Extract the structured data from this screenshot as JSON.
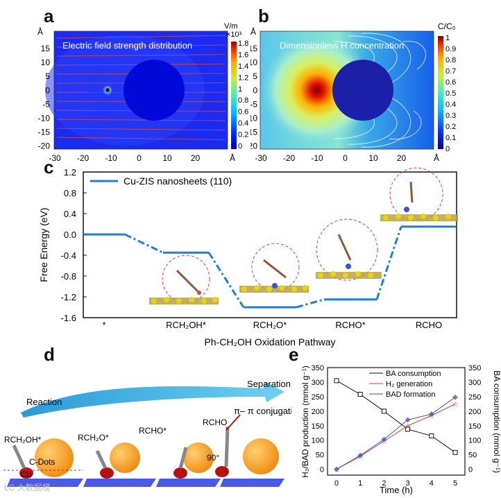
{
  "panels": {
    "a": "a",
    "b": "b",
    "c": "c",
    "d": "d",
    "e": "e"
  },
  "panel_a": {
    "overlay": "Electric field strength distribution",
    "unit_line1": "V/m",
    "unit_line2": "×10³",
    "axis_unit": "Å",
    "x_ticks": [
      "-30",
      "-20",
      "-10",
      "0",
      "10",
      "20"
    ],
    "y_ticks": [
      "15",
      "10",
      "5",
      "0",
      "-5",
      "-10",
      "-15",
      "-20"
    ],
    "colorbar_ticks": [
      "1.8",
      "1.6",
      "1.4",
      "1.2",
      "1",
      "0.8",
      "0.6",
      "0.4",
      "0.2",
      "0"
    ]
  },
  "panel_b": {
    "overlay": "Dimensionless H concentration",
    "unit": "C/C₀",
    "axis_unit": "Å",
    "x_ticks": [
      "-30",
      "-20",
      "-10",
      "0",
      "10",
      "20"
    ],
    "y_ticks": [
      "15",
      "10",
      "5",
      "0",
      "-5",
      "-10",
      "-15",
      "-20"
    ],
    "colorbar_ticks": [
      "1",
      "0.9",
      "0.8",
      "0.7",
      "0.6",
      "0.5",
      "0.4",
      "0.3",
      "0.2",
      "0.1",
      "0"
    ]
  },
  "chart_data": [
    {
      "type": "line",
      "panel": "c",
      "title": "",
      "xlabel": "Ph-CH₂OH Oxidation Pathway",
      "ylabel": "Free Energy (eV)",
      "ylim": [
        -1.6,
        1.2
      ],
      "y_ticks": [
        "1.2",
        "0.8",
        "0.4",
        "0.0",
        "-0.4",
        "-0.8",
        "-1.2",
        "-1.6"
      ],
      "categories": [
        "*",
        "RCH₂OH*",
        "RCH₂O*",
        "RCHO*",
        "RCHO"
      ],
      "series": [
        {
          "name": "Cu-ZIS nanosheets (110)",
          "color": "#1f7fd6",
          "values": [
            0.0,
            -0.35,
            -1.4,
            -1.25,
            0.15
          ]
        }
      ]
    },
    {
      "type": "line",
      "panel": "e",
      "xlabel": "Time (h)",
      "ylabel_left": "H₂/BAD production (mmol g⁻¹)",
      "ylabel_right": "BA consumption (mmol g⁻¹)",
      "ylim": [
        -20,
        350
      ],
      "x": [
        0,
        1,
        2,
        3,
        4,
        5
      ],
      "x_ticks": [
        "0",
        "1",
        "2",
        "3",
        "4",
        "5"
      ],
      "y_ticks": [
        "0",
        "50",
        "100",
        "150",
        "200",
        "250",
        "300",
        "350"
      ],
      "series": [
        {
          "name": "BA consumption",
          "color": "#111111",
          "values": [
            305,
            258,
            200,
            138,
            115,
            58
          ]
        },
        {
          "name": "H₂ generation",
          "color": "#e0363a",
          "values": [
            0,
            45,
            97,
            150,
            185,
            225
          ]
        },
        {
          "name": "BAD formation",
          "color": "#3d4ab8",
          "values": [
            0,
            48,
            103,
            170,
            190,
            248
          ]
        }
      ]
    }
  ],
  "panel_d": {
    "reaction": "Reaction",
    "separation": "Separation",
    "conjugation": "π– π conjugation",
    "cdots": "C-Dots",
    "cu": "Cu",
    "angle": "90°",
    "species": [
      "RCH₂OH*",
      "RCH₂O*",
      "RCHO*",
      "RCHO"
    ]
  },
  "watermark": "LC 大数据模"
}
